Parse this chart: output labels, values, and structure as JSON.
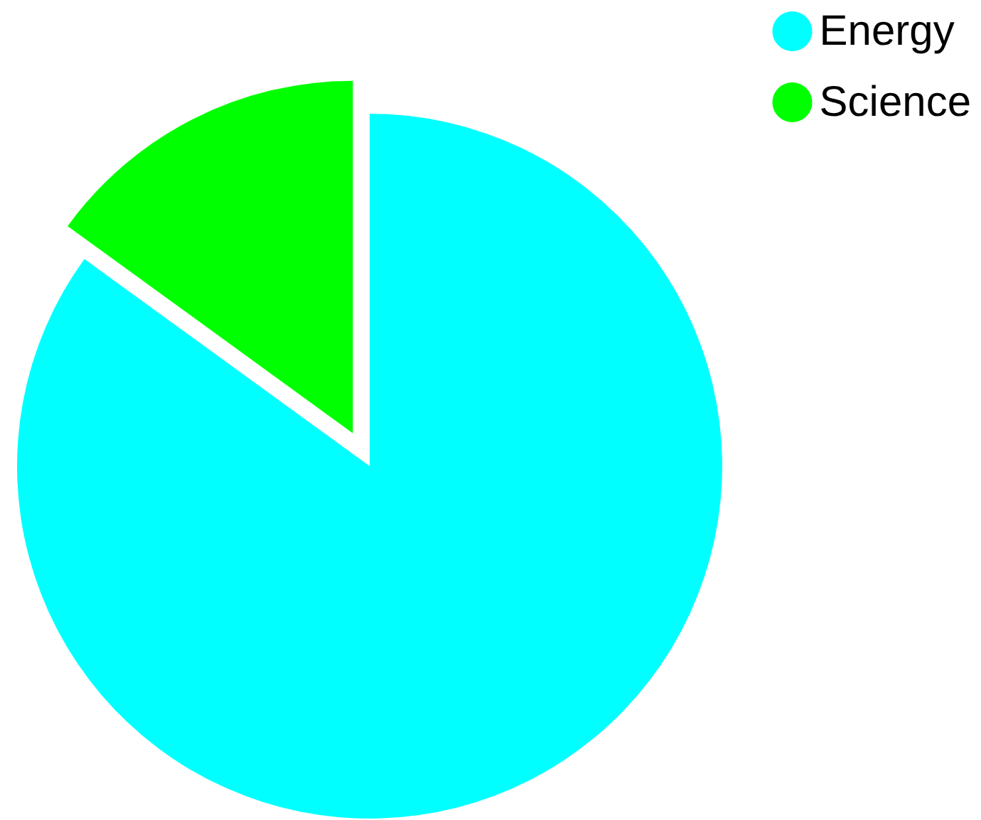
{
  "chart_data": {
    "type": "pie",
    "categories": [
      "Energy",
      "Science"
    ],
    "values": [
      85,
      15
    ],
    "colors": [
      "#00ffff",
      "#00ff00"
    ],
    "legend": "top right"
  }
}
